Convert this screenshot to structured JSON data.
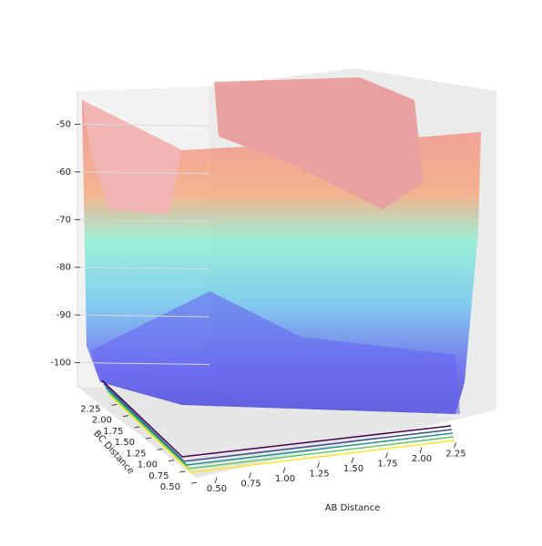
{
  "chart_data": {
    "type": "surface3d",
    "x_label": "AB Distance",
    "y_label": "BC Distance",
    "xlim": [
      0.4,
      2.4
    ],
    "xticks": [
      {
        "value": 0.5,
        "label": "0.50"
      },
      {
        "value": 0.75,
        "label": "0.75"
      },
      {
        "value": 1.0,
        "label": "1.00"
      },
      {
        "value": 1.25,
        "label": "1.25"
      },
      {
        "value": 1.5,
        "label": "1.50"
      },
      {
        "value": 1.75,
        "label": "1.75"
      },
      {
        "value": 2.0,
        "label": "2.00"
      },
      {
        "value": 2.25,
        "label": "2.25"
      }
    ],
    "ylim": [
      0.4,
      2.4
    ],
    "yticks": [
      {
        "value": 0.5,
        "label": "0.50"
      },
      {
        "value": 0.75,
        "label": "0.75"
      },
      {
        "value": 1.0,
        "label": "1.00"
      },
      {
        "value": 1.25,
        "label": "1.25"
      },
      {
        "value": 1.5,
        "label": "1.50"
      },
      {
        "value": 1.75,
        "label": "1.75"
      },
      {
        "value": 2.0,
        "label": "2.00"
      },
      {
        "value": 2.25,
        "label": "2.25"
      }
    ],
    "zlim": [
      -106,
      -44
    ],
    "zticks": [
      -50,
      -60,
      -70,
      -80,
      -90,
      -100
    ]
  }
}
